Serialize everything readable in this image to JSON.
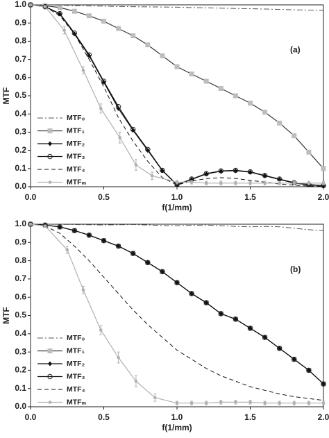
{
  "chart_data": [
    {
      "type": "line",
      "annotation": "(a)",
      "xlabel": "f(1/mm)",
      "ylabel": "MTF",
      "xlim": [
        0,
        2
      ],
      "ylim": [
        0,
        1
      ],
      "xticks": [
        {
          "value": 0,
          "label": "0.0"
        },
        0.5,
        {
          "value": 1,
          "label": "1.0"
        },
        1.5,
        {
          "value": 2,
          "label": "2.0"
        }
      ],
      "yticks": [
        {
          "value": 0,
          "label": "0.0"
        },
        0.1,
        0.2,
        0.3,
        0.4,
        0.5,
        0.6,
        0.7,
        0.8,
        0.9,
        {
          "value": 1,
          "label": "1.0"
        }
      ],
      "x": [
        0,
        0.1,
        0.2,
        0.3,
        0.4,
        0.5,
        0.6,
        0.7,
        0.8,
        0.9,
        1.0,
        1.1,
        1.2,
        1.3,
        1.4,
        1.5,
        1.6,
        1.7,
        1.8,
        1.9,
        2.0
      ],
      "series": [
        {
          "name": "MTF₀",
          "color": "#555555",
          "style": "dashdot",
          "marker": "none",
          "values": [
            1,
            1,
            0.998,
            0.996,
            0.994,
            0.993,
            0.991,
            0.99,
            0.989,
            0.988,
            0.987,
            0.985,
            0.984,
            0.982,
            0.98,
            0.979,
            0.977,
            0.975,
            0.973,
            0.971,
            0.969
          ]
        },
        {
          "name": "MTF₁",
          "color": "#333333",
          "style": "solid",
          "marker": "square",
          "values": [
            1,
            0.995,
            0.985,
            0.965,
            0.94,
            0.91,
            0.87,
            0.83,
            0.78,
            0.72,
            0.66,
            0.62,
            0.58,
            0.54,
            0.5,
            0.46,
            0.41,
            0.35,
            0.28,
            0.19,
            0.1
          ]
        },
        {
          "name": "MTF₂",
          "color": "#111111",
          "style": "solid",
          "marker": "diamond",
          "values": [
            1,
            0.99,
            0.95,
            0.84,
            0.72,
            0.575,
            0.43,
            0.31,
            0.2,
            0.088,
            0.01,
            0.04,
            0.07,
            0.085,
            0.088,
            0.08,
            0.06,
            0.04,
            0.02,
            0.01,
            0.005
          ]
        },
        {
          "name": "MTF₃",
          "color": "#111111",
          "style": "solid",
          "marker": "circle",
          "values": [
            1,
            0.99,
            0.952,
            0.845,
            0.725,
            0.58,
            0.44,
            0.315,
            0.205,
            0.09,
            0.012,
            0.042,
            0.072,
            0.087,
            0.09,
            0.082,
            0.062,
            0.042,
            0.022,
            0.012,
            0.006
          ]
        },
        {
          "name": "MTF₄",
          "color": "#111111",
          "style": "dash",
          "marker": "none",
          "values": [
            1,
            0.99,
            0.94,
            0.84,
            0.7,
            0.55,
            0.38,
            0.25,
            0.14,
            0.05,
            0.01,
            0.03,
            0.045,
            0.05,
            0.045,
            0.035,
            0.025,
            0.015,
            0.008,
            0.004,
            0.002
          ]
        },
        {
          "name": "MTFₘ",
          "color": "#b0b0b0",
          "style": "solid",
          "marker": "dot",
          "x": [
            0,
            0.1,
            0.23,
            0.36,
            0.48,
            0.61,
            0.72,
            0.83,
            1.0,
            1.1,
            1.2,
            1.3,
            1.4,
            1.5,
            1.6,
            1.7,
            1.8,
            1.9,
            2.0
          ],
          "values": [
            1,
            0.99,
            0.86,
            0.64,
            0.43,
            0.27,
            0.12,
            0.06,
            0.025,
            0.025,
            0.02,
            0.02,
            0.02,
            0.02,
            0.02,
            0.02,
            0.02,
            0.02,
            0.02
          ],
          "errors": [
            0,
            0.005,
            0.02,
            0.02,
            0.025,
            0.03,
            0.03,
            0.02,
            0.01,
            0.01,
            0.01,
            0.01,
            0.01,
            0.01,
            0.01,
            0.01,
            0.01,
            0.01,
            0.01
          ]
        }
      ]
    },
    {
      "type": "line",
      "annotation": "(b)",
      "xlabel": "f(1/mm)",
      "ylabel": "MTF",
      "xlim": [
        0,
        2
      ],
      "ylim": [
        0,
        1
      ],
      "xticks": [
        {
          "value": 0,
          "label": "0.0"
        },
        0.5,
        {
          "value": 1,
          "label": "1.0"
        },
        1.5,
        {
          "value": 2,
          "label": "2.0"
        }
      ],
      "yticks": [
        {
          "value": 0,
          "label": "0.0"
        },
        0.1,
        0.2,
        0.3,
        0.4,
        0.5,
        0.6,
        0.7,
        0.8,
        0.9,
        {
          "value": 1,
          "label": "1.0"
        }
      ],
      "x": [
        0,
        0.1,
        0.2,
        0.3,
        0.4,
        0.5,
        0.6,
        0.7,
        0.8,
        0.9,
        1.0,
        1.1,
        1.2,
        1.3,
        1.4,
        1.5,
        1.6,
        1.7,
        1.8,
        1.9,
        2.0
      ],
      "series": [
        {
          "name": "MTF₀",
          "color": "#555555",
          "style": "dashdot",
          "marker": "none",
          "values": [
            1,
            1,
            0.999,
            0.998,
            0.997,
            0.996,
            0.997,
            0.998,
            0.996,
            0.993,
            0.992,
            0.994,
            0.995,
            0.992,
            0.988,
            0.986,
            0.988,
            0.986,
            0.978,
            0.97,
            0.965
          ]
        },
        {
          "name": "MTF₁",
          "color": "#333333",
          "style": "solid",
          "marker": "square",
          "values": [
            1,
            0.995,
            0.985,
            0.965,
            0.94,
            0.91,
            0.88,
            0.84,
            0.79,
            0.74,
            0.68,
            0.62,
            0.57,
            0.51,
            0.48,
            0.43,
            0.38,
            0.32,
            0.26,
            0.2,
            0.125
          ]
        },
        {
          "name": "MTF₂",
          "color": "#111111",
          "style": "solid",
          "marker": "diamond",
          "values": [
            1,
            0.995,
            0.985,
            0.965,
            0.94,
            0.91,
            0.88,
            0.84,
            0.79,
            0.74,
            0.68,
            0.62,
            0.57,
            0.51,
            0.48,
            0.43,
            0.38,
            0.32,
            0.26,
            0.2,
            0.125
          ]
        },
        {
          "name": "MTF₃",
          "color": "#111111",
          "style": "solid",
          "marker": "circle",
          "values": [
            1,
            0.995,
            0.985,
            0.965,
            0.94,
            0.91,
            0.88,
            0.84,
            0.79,
            0.74,
            0.68,
            0.62,
            0.57,
            0.51,
            0.48,
            0.43,
            0.38,
            0.32,
            0.26,
            0.2,
            0.125
          ]
        },
        {
          "name": "MTF₄",
          "color": "#111111",
          "style": "dash",
          "marker": "none",
          "values": [
            1,
            0.99,
            0.95,
            0.88,
            0.8,
            0.71,
            0.62,
            0.53,
            0.45,
            0.38,
            0.31,
            0.26,
            0.21,
            0.17,
            0.14,
            0.11,
            0.09,
            0.07,
            0.055,
            0.045,
            0.035
          ]
        },
        {
          "name": "MTFₘ",
          "color": "#b0b0b0",
          "style": "solid",
          "marker": "dot",
          "x": [
            0,
            0.1,
            0.25,
            0.36,
            0.48,
            0.6,
            0.72,
            0.85,
            1.0,
            1.1,
            1.2,
            1.3,
            1.4,
            1.5,
            1.6,
            1.7,
            1.8,
            1.9,
            2.0
          ],
          "values": [
            1,
            0.99,
            0.86,
            0.64,
            0.42,
            0.27,
            0.14,
            0.05,
            0.02,
            0.02,
            0.02,
            0.025,
            0.025,
            0.025,
            0.02,
            0.02,
            0.02,
            0.02,
            0.02
          ],
          "errors": [
            0,
            0.005,
            0.02,
            0.02,
            0.025,
            0.03,
            0.03,
            0.02,
            0.01,
            0.01,
            0.01,
            0.01,
            0.01,
            0.01,
            0.01,
            0.01,
            0.01,
            0.01,
            0.01
          ]
        }
      ]
    }
  ]
}
